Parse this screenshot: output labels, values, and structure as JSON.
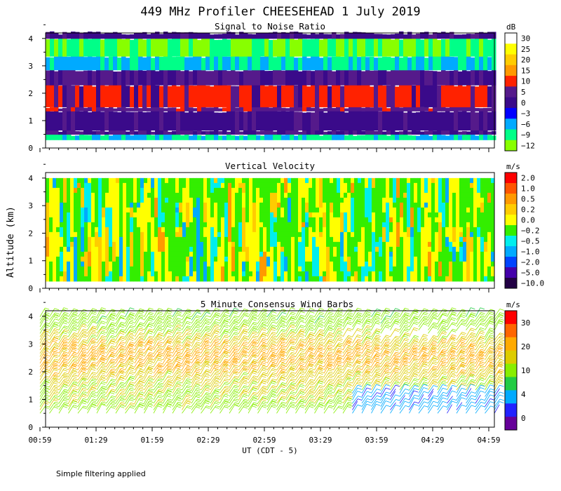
{
  "figure": {
    "title": "449 MHz Profiler CHEESEHEAD  1 July 2019",
    "ylabel": "Altitude (km)",
    "xlabel": "UT  (CDT - 5)",
    "footnote": "Simple filtering applied"
  },
  "chart_data": [
    {
      "type": "heatmap",
      "title": "Signal to Noise Ratio",
      "colorbar_unit": "dB",
      "colorbar_labels": [
        "30",
        "25",
        "20",
        "15",
        "10",
        "5",
        "0",
        "−3",
        "−6",
        "−9",
        "−12"
      ],
      "colorbar_colors": [
        "#ffffff",
        "#ffff00",
        "#ffcc00",
        "#ff9900",
        "#ff2200",
        "#551a8b",
        "#3a0a8a",
        "#0000ff",
        "#00aaff",
        "#00ff88",
        "#88ff00"
      ],
      "xticks": [
        "00:59",
        "01:29",
        "01:59",
        "02:29",
        "02:59",
        "03:29",
        "03:59",
        "04:29",
        "04:59"
      ],
      "yticks": [
        "0",
        "1",
        "2",
        "3",
        "4"
      ],
      "xlim_hours": [
        0.983,
        4.983
      ],
      "ylim_km": [
        0,
        4.2
      ],
      "layers": [
        {
          "from_km": 0.3,
          "to_km": 0.5,
          "value_db": -6
        },
        {
          "from_km": 0.5,
          "to_km": 0.65,
          "value_db": 5
        },
        {
          "from_km": 0.65,
          "to_km": 1.35,
          "value_db": 3
        },
        {
          "from_km": 1.35,
          "to_km": 1.5,
          "value_db": 8
        },
        {
          "from_km": 1.5,
          "to_km": 2.3,
          "value_db": 12
        },
        {
          "from_km": 2.3,
          "to_km": 2.85,
          "value_db": 5
        },
        {
          "from_km": 2.85,
          "to_km": 3.35,
          "value_db": -6
        },
        {
          "from_km": 3.35,
          "to_km": 4.0,
          "value_db": -9
        },
        {
          "from_km": 4.0,
          "to_km": 4.2,
          "value_db": 3
        }
      ]
    },
    {
      "type": "heatmap",
      "title": "Vertical Velocity",
      "colorbar_unit": "m/s",
      "colorbar_labels": [
        "2.0",
        "1.0",
        "0.5",
        "0.2",
        "0.0",
        "−0.2",
        "−0.5",
        "−1.0",
        "−2.0",
        "−5.0",
        "−10.0"
      ],
      "colorbar_colors": [
        "#ff0000",
        "#ff5500",
        "#ff9900",
        "#ffcc00",
        "#ffff00",
        "#33ee00",
        "#00eeee",
        "#00aaff",
        "#0044ff",
        "#4400aa",
        "#220044"
      ],
      "xticks": [
        "00:59",
        "01:29",
        "01:59",
        "02:29",
        "02:59",
        "03:29",
        "03:59",
        "04:29",
        "04:59"
      ],
      "yticks": [
        "0",
        "1",
        "2",
        "3",
        "4"
      ],
      "xlim_hours": [
        0.983,
        4.983
      ],
      "ylim_km": [
        0,
        4.2
      ],
      "dominant_values_ms": [
        -0.2,
        0.0,
        0.2,
        -0.5
      ],
      "data_range_km": [
        0.3,
        4.0
      ]
    },
    {
      "type": "scatter",
      "title": "5 Minute Consensus Wind Barbs",
      "colorbar_unit": "m/s",
      "colorbar_labels": [
        "30",
        "20",
        "10",
        "4",
        "0"
      ],
      "colorbar_colors": [
        "#ff0000",
        "#ff6600",
        "#ffaa00",
        "#ddcc00",
        "#88ee00",
        "#22cc44",
        "#00aaff",
        "#2222ff",
        "#660099"
      ],
      "xticks": [
        "00:59",
        "01:29",
        "01:59",
        "02:29",
        "02:59",
        "03:29",
        "03:59",
        "04:29",
        "04:59"
      ],
      "yticks": [
        "0",
        "1",
        "2",
        "3",
        "4"
      ],
      "xlim_hours": [
        0.983,
        4.983
      ],
      "ylim_km": [
        0,
        4.2
      ],
      "interval_minutes": 5,
      "speed_profile": [
        {
          "alt_km": 0.5,
          "speed_ms": 12
        },
        {
          "alt_km": 1.0,
          "speed_ms": 14
        },
        {
          "alt_km": 1.5,
          "speed_ms": 15
        },
        {
          "alt_km": 2.0,
          "speed_ms": 18
        },
        {
          "alt_km": 2.5,
          "speed_ms": 20
        },
        {
          "alt_km": 3.0,
          "speed_ms": 16
        },
        {
          "alt_km": 3.5,
          "speed_ms": 12
        },
        {
          "alt_km": 4.0,
          "speed_ms": 11
        }
      ]
    }
  ]
}
